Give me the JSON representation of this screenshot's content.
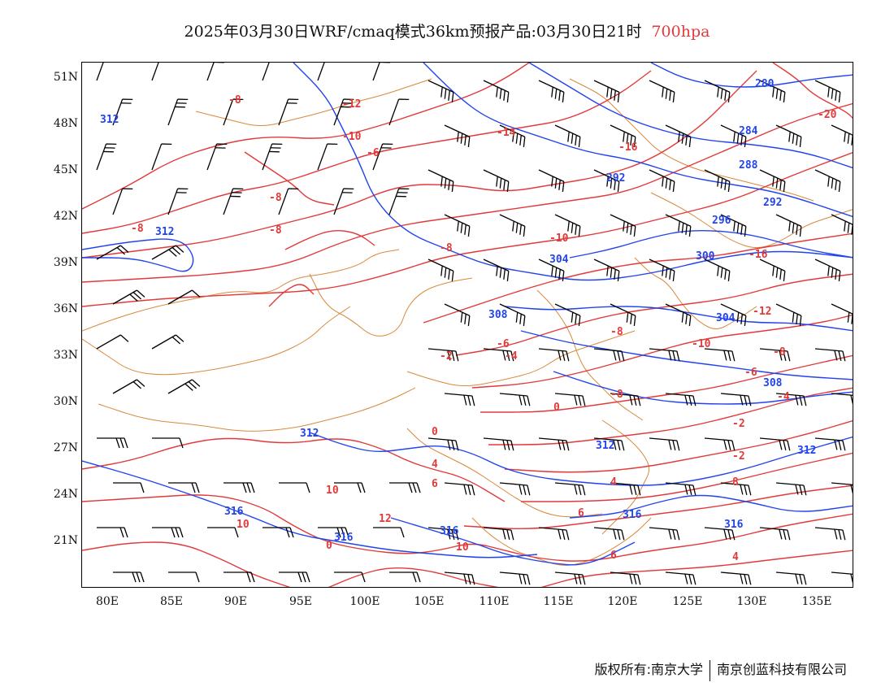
{
  "header": {
    "title": "2025年03月30日WRF/cmaq模式36km预报产品:03月30日21时",
    "level": "700hpa",
    "level_color": "#e23a3a"
  },
  "axes": {
    "lat_labels": [
      "51N",
      "48N",
      "45N",
      "42N",
      "39N",
      "36N",
      "33N",
      "30N",
      "27N",
      "24N",
      "21N"
    ],
    "lon_labels": [
      "80E",
      "85E",
      "90E",
      "95E",
      "100E",
      "105E",
      "110E",
      "115E",
      "120E",
      "125E",
      "130E",
      "135E"
    ]
  },
  "map": {
    "colors": {
      "temperature": "#e23a3a",
      "geopotential": "#2244ee",
      "boundary": "#d9893a",
      "wind": "#000000"
    },
    "temperature_labels": [
      "-8",
      "-12",
      "-10",
      "-6",
      "-14",
      "-16",
      "-20",
      "-8",
      "-8",
      "-8",
      "-10",
      "-8",
      "-16",
      "-10",
      "-12",
      "-6",
      "-4",
      "-2",
      "-8",
      "-6",
      "-8",
      "-4",
      "0",
      "-2",
      "0",
      "-2",
      "4",
      "6",
      "10",
      "12",
      "10",
      "6",
      "4",
      "8",
      "6",
      "10",
      "4",
      "0",
      "-8"
    ],
    "height_labels": [
      "312",
      "280",
      "284",
      "288",
      "292",
      "292",
      "296",
      "300",
      "304",
      "304",
      "308",
      "308",
      "312",
      "312",
      "312",
      "316",
      "316",
      "316",
      "316",
      "316",
      "312"
    ]
  },
  "footer": {
    "left": "版权所有:南京大学",
    "right": "南京创蓝科技有限公司"
  }
}
